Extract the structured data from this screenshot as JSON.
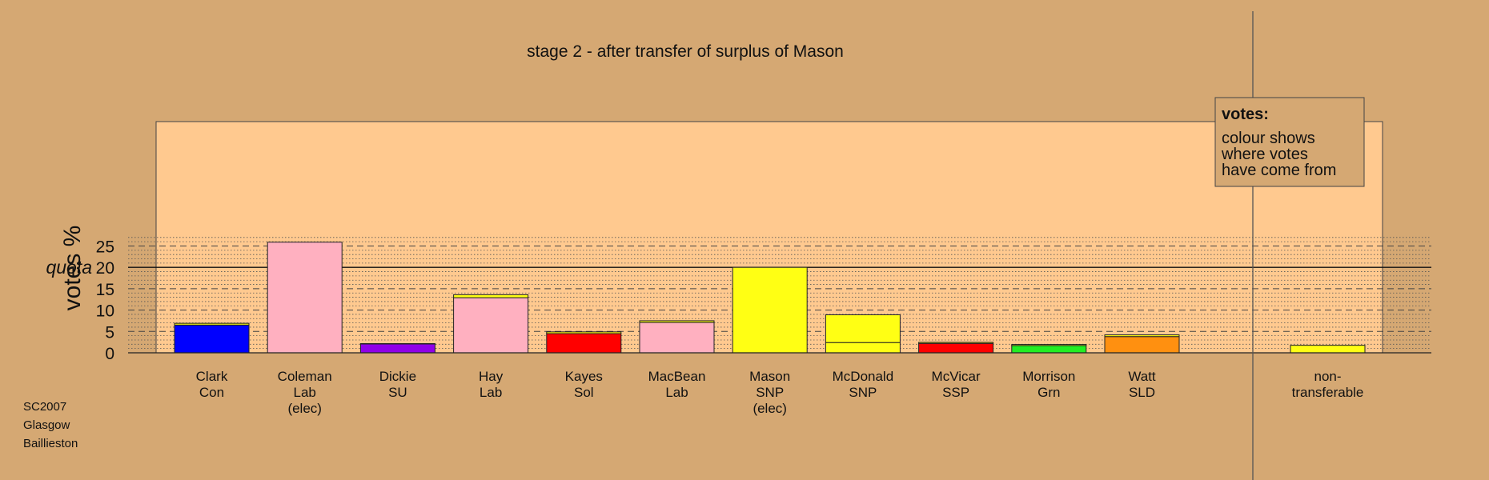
{
  "chart_data": {
    "type": "bar",
    "stacked": true,
    "title": "stage 2 - after transfer of surplus of Mason",
    "ylabel": "votes %",
    "ylim": [
      0,
      27
    ],
    "yticks": [
      0,
      5,
      10,
      15,
      20,
      25
    ],
    "quota": {
      "value": 20,
      "label": "quota"
    },
    "grid": true,
    "colors": {
      "Con": "#0000ff",
      "Lab": "#ffb0c0",
      "SU": "#9000e8",
      "Sol": "#ff0000",
      "SNP": "#ffff14",
      "SSP": "#ff0000",
      "Grn": "#22ee22",
      "SLD": "#ff9010",
      "transfer": "#ffff14"
    },
    "categories": [
      {
        "name": "Clark",
        "party": "Con",
        "note": "",
        "segments": [
          {
            "value": 6.5,
            "color": "Con"
          },
          {
            "value": 0.4,
            "color": "transfer"
          }
        ]
      },
      {
        "name": "Coleman",
        "party": "Lab",
        "note": "(elec)",
        "segments": [
          {
            "value": 25.9,
            "color": "Lab"
          }
        ]
      },
      {
        "name": "Dickie",
        "party": "SU",
        "note": "",
        "segments": [
          {
            "value": 2.1,
            "color": "SU"
          },
          {
            "value": 0.05,
            "color": "transfer"
          }
        ]
      },
      {
        "name": "Hay",
        "party": "Lab",
        "note": "",
        "segments": [
          {
            "value": 12.9,
            "color": "Lab"
          },
          {
            "value": 0.7,
            "color": "transfer"
          }
        ]
      },
      {
        "name": "Kayes",
        "party": "Sol",
        "note": "",
        "segments": [
          {
            "value": 4.5,
            "color": "Sol"
          },
          {
            "value": 0.4,
            "color": "transfer"
          }
        ]
      },
      {
        "name": "MacBean",
        "party": "Lab",
        "note": "",
        "segments": [
          {
            "value": 7.1,
            "color": "Lab"
          },
          {
            "value": 0.4,
            "color": "transfer"
          }
        ]
      },
      {
        "name": "Mason",
        "party": "SNP",
        "note": "(elec)",
        "segments": [
          {
            "value": 20.0,
            "color": "SNP"
          }
        ]
      },
      {
        "name": "McDonald",
        "party": "SNP",
        "note": "",
        "segments": [
          {
            "value": 2.4,
            "color": "SNP"
          },
          {
            "value": 6.5,
            "color": "transfer"
          }
        ]
      },
      {
        "name": "McVicar",
        "party": "SSP",
        "note": "",
        "segments": [
          {
            "value": 2.2,
            "color": "SSP"
          },
          {
            "value": 0.25,
            "color": "transfer"
          }
        ]
      },
      {
        "name": "Morrison",
        "party": "Grn",
        "note": "",
        "segments": [
          {
            "value": 1.7,
            "color": "Grn"
          },
          {
            "value": 0.25,
            "color": "transfer"
          }
        ]
      },
      {
        "name": "Watt",
        "party": "SLD",
        "note": "",
        "segments": [
          {
            "value": 3.8,
            "color": "SLD"
          },
          {
            "value": 0.4,
            "color": "transfer"
          }
        ]
      }
    ],
    "nontransferable": {
      "line1": "non-",
      "line2": "transferable",
      "value": 1.75,
      "color": "transfer"
    },
    "legend": {
      "title": "votes:",
      "lines": [
        "colour shows",
        "where votes",
        "have come from"
      ],
      "placement": "top-right"
    }
  },
  "footer": [
    "SC2007",
    "Glasgow",
    "Baillieston"
  ]
}
